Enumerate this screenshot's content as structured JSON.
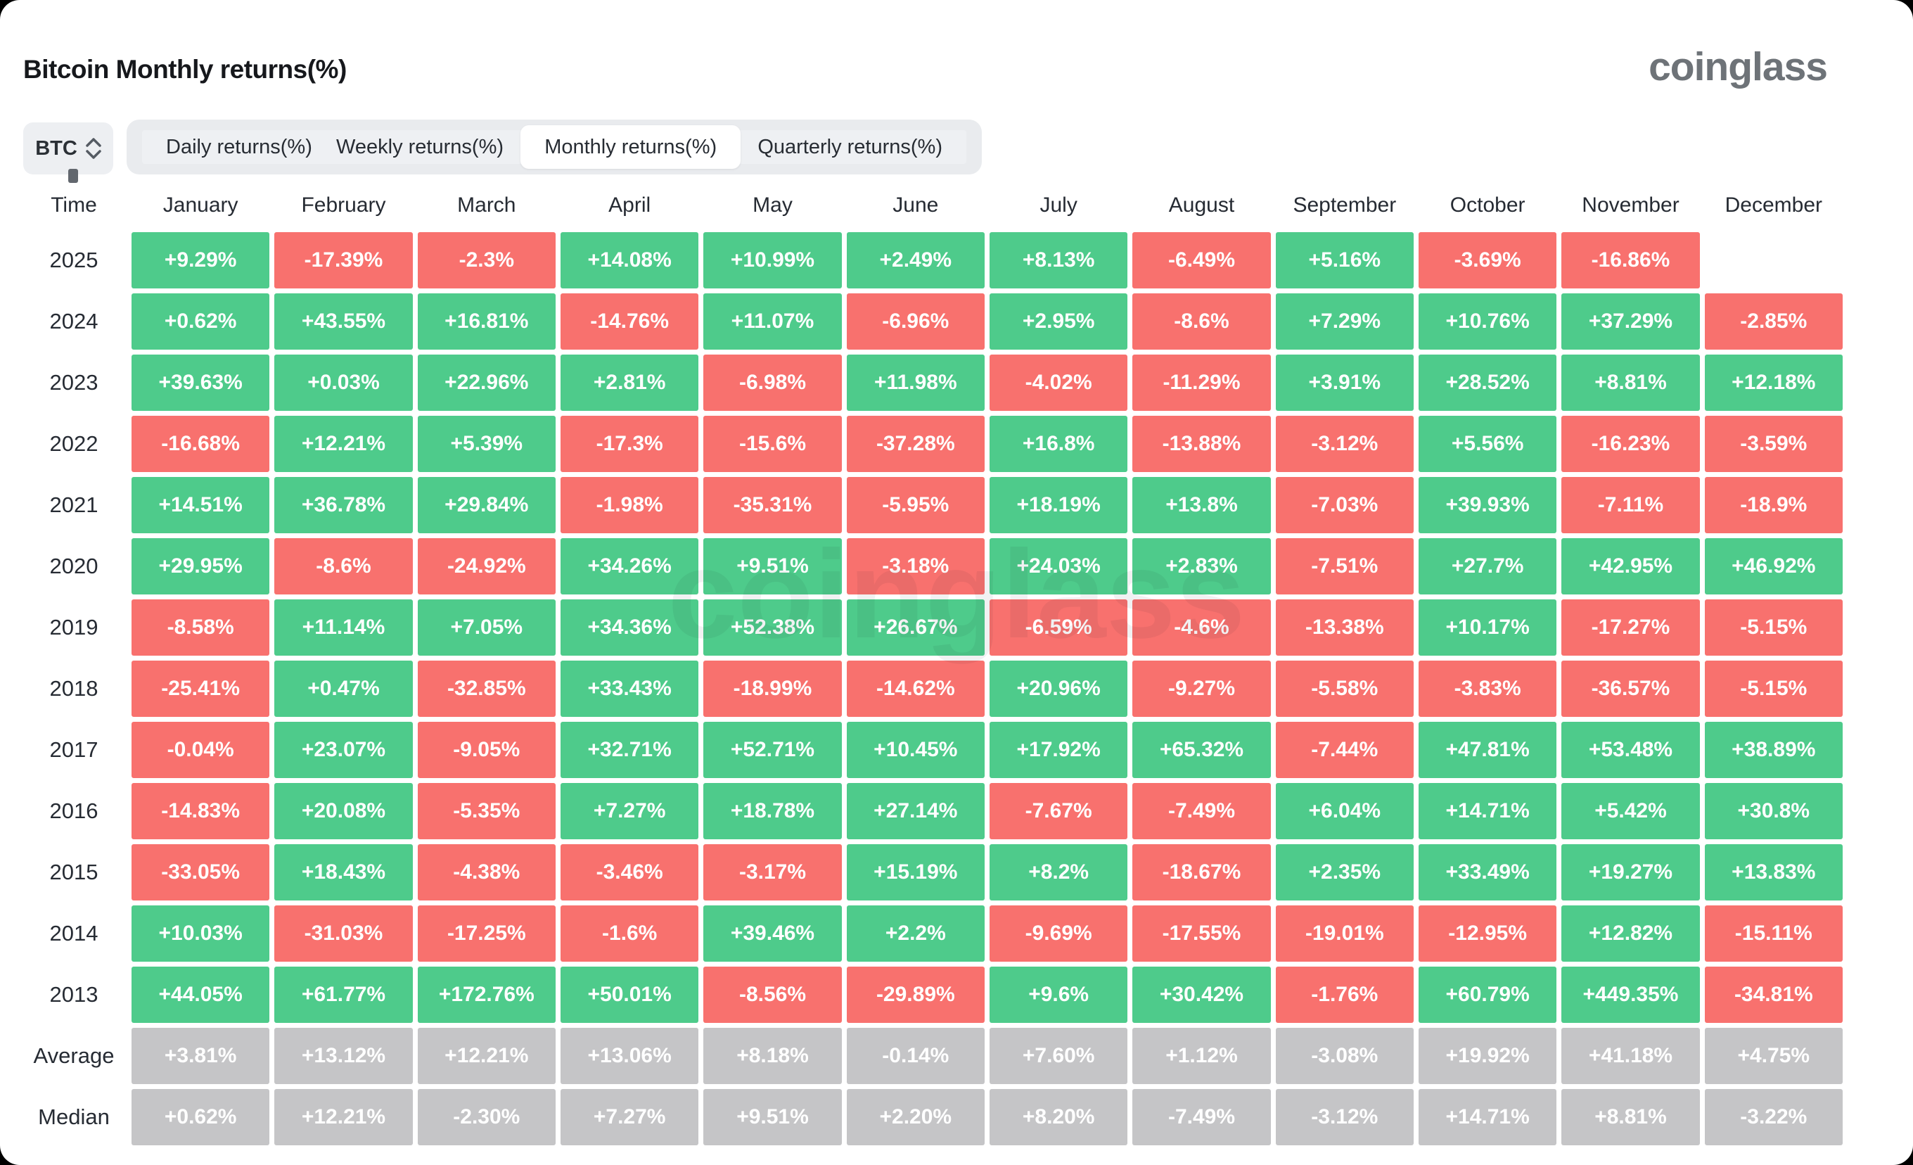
{
  "header": {
    "title": "Bitcoin Monthly returns(%)",
    "logo": "coinglass",
    "watermark": "coinglass"
  },
  "controls": {
    "coin": "BTC",
    "tabs": [
      {
        "label": "Daily returns(%)",
        "active": false
      },
      {
        "label": "Weekly returns(%)",
        "active": false
      },
      {
        "label": "Monthly returns(%)",
        "active": true
      },
      {
        "label": "Quarterly returns(%)",
        "active": false
      }
    ]
  },
  "chart_data": {
    "type": "heatmap",
    "title": "Bitcoin Monthly returns(%)",
    "columns": [
      "Time",
      "January",
      "February",
      "March",
      "April",
      "May",
      "June",
      "July",
      "August",
      "September",
      "October",
      "November",
      "December"
    ],
    "colors": {
      "positive": "#4ecb8b",
      "negative": "#f8716e",
      "neutral": "#c5c5c7"
    },
    "rows": [
      {
        "label": "2025",
        "type": "year",
        "values": [
          "+9.29%",
          "-17.39%",
          "-2.3%",
          "+14.08%",
          "+10.99%",
          "+2.49%",
          "+8.13%",
          "-6.49%",
          "+5.16%",
          "-3.69%",
          "-16.86%",
          null
        ]
      },
      {
        "label": "2024",
        "type": "year",
        "values": [
          "+0.62%",
          "+43.55%",
          "+16.81%",
          "-14.76%",
          "+11.07%",
          "-6.96%",
          "+2.95%",
          "-8.6%",
          "+7.29%",
          "+10.76%",
          "+37.29%",
          "-2.85%"
        ]
      },
      {
        "label": "2023",
        "type": "year",
        "values": [
          "+39.63%",
          "+0.03%",
          "+22.96%",
          "+2.81%",
          "-6.98%",
          "+11.98%",
          "-4.02%",
          "-11.29%",
          "+3.91%",
          "+28.52%",
          "+8.81%",
          "+12.18%"
        ]
      },
      {
        "label": "2022",
        "type": "year",
        "values": [
          "-16.68%",
          "+12.21%",
          "+5.39%",
          "-17.3%",
          "-15.6%",
          "-37.28%",
          "+16.8%",
          "-13.88%",
          "-3.12%",
          "+5.56%",
          "-16.23%",
          "-3.59%"
        ]
      },
      {
        "label": "2021",
        "type": "year",
        "values": [
          "+14.51%",
          "+36.78%",
          "+29.84%",
          "-1.98%",
          "-35.31%",
          "-5.95%",
          "+18.19%",
          "+13.8%",
          "-7.03%",
          "+39.93%",
          "-7.11%",
          "-18.9%"
        ]
      },
      {
        "label": "2020",
        "type": "year",
        "values": [
          "+29.95%",
          "-8.6%",
          "-24.92%",
          "+34.26%",
          "+9.51%",
          "-3.18%",
          "+24.03%",
          "+2.83%",
          "-7.51%",
          "+27.7%",
          "+42.95%",
          "+46.92%"
        ]
      },
      {
        "label": "2019",
        "type": "year",
        "values": [
          "-8.58%",
          "+11.14%",
          "+7.05%",
          "+34.36%",
          "+52.38%",
          "+26.67%",
          "-6.59%",
          "-4.6%",
          "-13.38%",
          "+10.17%",
          "-17.27%",
          "-5.15%"
        ]
      },
      {
        "label": "2018",
        "type": "year",
        "values": [
          "-25.41%",
          "+0.47%",
          "-32.85%",
          "+33.43%",
          "-18.99%",
          "-14.62%",
          "+20.96%",
          "-9.27%",
          "-5.58%",
          "-3.83%",
          "-36.57%",
          "-5.15%"
        ]
      },
      {
        "label": "2017",
        "type": "year",
        "values": [
          "-0.04%",
          "+23.07%",
          "-9.05%",
          "+32.71%",
          "+52.71%",
          "+10.45%",
          "+17.92%",
          "+65.32%",
          "-7.44%",
          "+47.81%",
          "+53.48%",
          "+38.89%"
        ]
      },
      {
        "label": "2016",
        "type": "year",
        "values": [
          "-14.83%",
          "+20.08%",
          "-5.35%",
          "+7.27%",
          "+18.78%",
          "+27.14%",
          "-7.67%",
          "-7.49%",
          "+6.04%",
          "+14.71%",
          "+5.42%",
          "+30.8%"
        ]
      },
      {
        "label": "2015",
        "type": "year",
        "values": [
          "-33.05%",
          "+18.43%",
          "-4.38%",
          "-3.46%",
          "-3.17%",
          "+15.19%",
          "+8.2%",
          "-18.67%",
          "+2.35%",
          "+33.49%",
          "+19.27%",
          "+13.83%"
        ]
      },
      {
        "label": "2014",
        "type": "year",
        "values": [
          "+10.03%",
          "-31.03%",
          "-17.25%",
          "-1.6%",
          "+39.46%",
          "+2.2%",
          "-9.69%",
          "-17.55%",
          "-19.01%",
          "-12.95%",
          "+12.82%",
          "-15.11%"
        ]
      },
      {
        "label": "2013",
        "type": "year",
        "values": [
          "+44.05%",
          "+61.77%",
          "+172.76%",
          "+50.01%",
          "-8.56%",
          "-29.89%",
          "+9.6%",
          "+30.42%",
          "-1.76%",
          "+60.79%",
          "+449.35%",
          "-34.81%"
        ]
      },
      {
        "label": "Average",
        "type": "summary",
        "values": [
          "+3.81%",
          "+13.12%",
          "+12.21%",
          "+13.06%",
          "+8.18%",
          "-0.14%",
          "+7.60%",
          "+1.12%",
          "-3.08%",
          "+19.92%",
          "+41.18%",
          "+4.75%"
        ]
      },
      {
        "label": "Median",
        "type": "summary",
        "values": [
          "+0.62%",
          "+12.21%",
          "-2.30%",
          "+7.27%",
          "+9.51%",
          "+2.20%",
          "+8.20%",
          "-7.49%",
          "-3.12%",
          "+14.71%",
          "+8.81%",
          "-3.22%"
        ]
      }
    ]
  }
}
